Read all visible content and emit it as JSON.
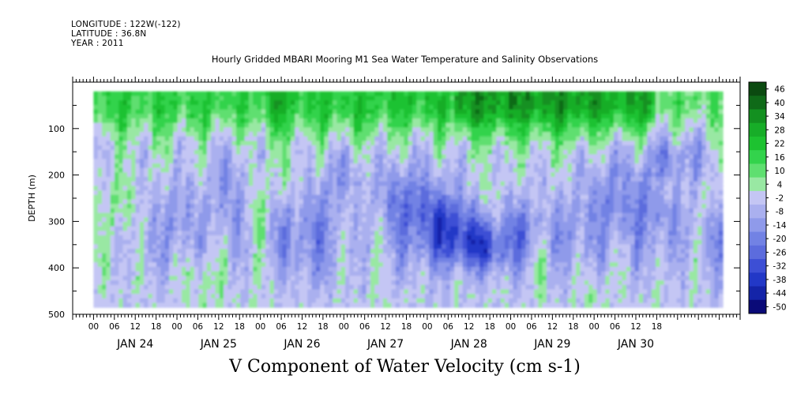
{
  "header": {
    "longitude": "LONGITUDE : 122W(-122)",
    "latitude": "LATITUDE : 36.8N",
    "year": "YEAR : 2011"
  },
  "title": "Hourly Gridded MBARI Mooring M1 Sea Water Temperature and Salinity Observations",
  "bottom_title": "V Component of Water Velocity (cm s-1)",
  "chart_data": {
    "type": "heatmap",
    "title": "Hourly Gridded MBARI Mooring M1 Sea Water Temperature and Salinity Observations",
    "variable": "V Component of Water Velocity (cm s-1)",
    "ylabel": "DEPTH (m)",
    "ylim": [
      500,
      0
    ],
    "y_ticks": [
      100,
      200,
      300,
      400,
      500
    ],
    "x_hour_ticks": [
      "00",
      "06",
      "12",
      "18",
      "00",
      "06",
      "12",
      "18",
      "00",
      "06",
      "12",
      "18",
      "00",
      "06",
      "12",
      "18",
      "00",
      "06",
      "12",
      "18",
      "00",
      "06",
      "12",
      "18",
      "00",
      "06",
      "12",
      "18"
    ],
    "x_day_labels": [
      "JAN 24",
      "JAN 25",
      "JAN 26",
      "JAN 27",
      "JAN 28",
      "JAN 29",
      "JAN 30"
    ],
    "data_time_range_hours": [
      6,
      187
    ],
    "data_depth_range_m": [
      20,
      485
    ],
    "colorbar_labels": [
      "46",
      "40",
      "34",
      "28",
      "22",
      "16",
      "10",
      "4",
      "-2",
      "-8",
      "-14",
      "-20",
      "-26",
      "-32",
      "-38",
      "-44",
      "-50"
    ],
    "colorbar_colors": [
      "#0b4a10",
      "#0f6a18",
      "#139020",
      "#17ad28",
      "#1dc230",
      "#33d34c",
      "#5fdf70",
      "#99e8a3",
      "#c4c6f4",
      "#aab0ef",
      "#8f9aea",
      "#7282e4",
      "#5c6cdd",
      "#3d4fd5",
      "#2238c7",
      "#1424a8",
      "#0a0a78"
    ],
    "grid": false
  }
}
